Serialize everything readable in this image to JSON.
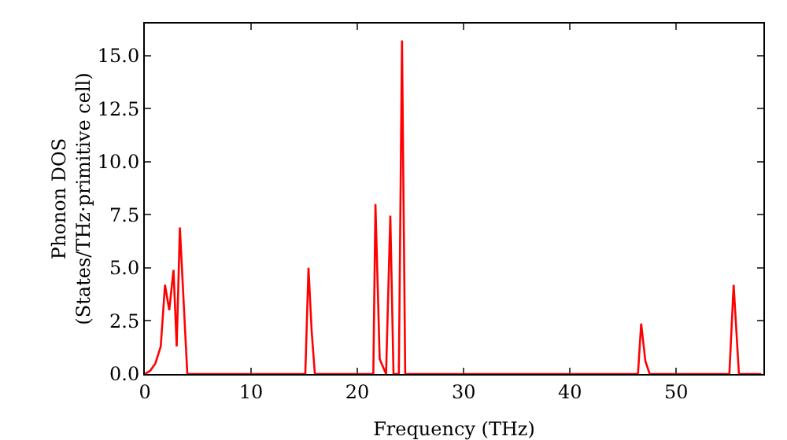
{
  "chart_data": {
    "type": "line",
    "xlabel": "Frequency (THz)",
    "ylabel": "Phonon DOS\n(States/THz·primitive cell)",
    "x": [
      0,
      0.5,
      1,
      1.5,
      1.9,
      2.3,
      2.7,
      3.0,
      3.3,
      4.0,
      15.1,
      15.4,
      15.7,
      16.0,
      21.5,
      21.7,
      22.1,
      22.7,
      23.1,
      23.4,
      23.9,
      24.2,
      24.5,
      46.4,
      46.7,
      47.1,
      47.5,
      55.0,
      55.4,
      55.9,
      58
    ],
    "series": [
      {
        "color": "#ff0000",
        "values": [
          0,
          0.15,
          0.5,
          1.3,
          4.2,
          3.0,
          4.9,
          1.3,
          6.9,
          0,
          0,
          5.0,
          2.0,
          0,
          0,
          8.0,
          0.7,
          0,
          7.45,
          0,
          0,
          15.7,
          0,
          0,
          2.37,
          0.6,
          0,
          0,
          4.2,
          0,
          0
        ]
      }
    ],
    "xlim": [
      0,
      58.2
    ],
    "xticks": [
      0,
      10,
      20,
      30,
      40,
      50
    ],
    "ylim": [
      0,
      16.5
    ],
    "yticks": [
      {
        "value": 0,
        "label": "0.0"
      },
      {
        "value": 2.5,
        "label": "2.5"
      },
      {
        "value": 5,
        "label": "5.0"
      },
      {
        "value": 7.5,
        "label": "7.5"
      },
      {
        "value": 10,
        "label": "10.0"
      },
      {
        "value": 12.5,
        "label": "12.5"
      },
      {
        "value": 15,
        "label": "15.0"
      }
    ],
    "grid": false,
    "marker": "none",
    "line_style": "solid"
  }
}
